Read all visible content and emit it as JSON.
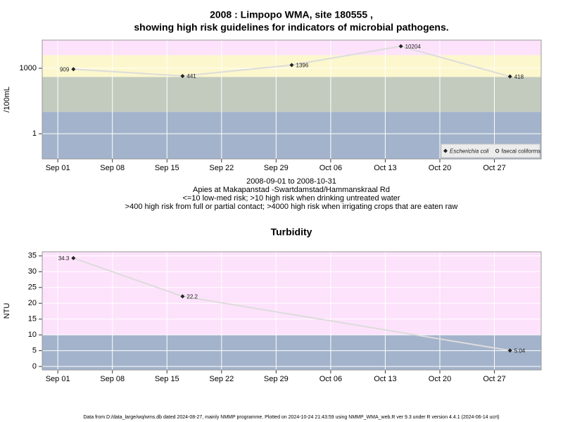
{
  "chart_data": [
    {
      "type": "line",
      "title": [
        "2008 : Limpopo WMA, site 180555 ,",
        "showing high risk guidelines for indicators of microbial pathogens."
      ],
      "y_label": "/100mL",
      "ylog": true,
      "ylim": [
        0.07,
        19500
      ],
      "yticks": [
        1,
        1000
      ],
      "xlim": [
        "Aug 30",
        "Nov 02"
      ],
      "xticks": [
        "Sep 01",
        "Sep 08",
        "Sep 15",
        "Sep 22",
        "Sep 29",
        "Oct 06",
        "Oct 13",
        "Oct 20",
        "Oct 27"
      ],
      "x": [
        "Sep 03",
        "Sep 17",
        "Oct 01",
        "Oct 15",
        "Oct 29"
      ],
      "band_edges": [
        10,
        400,
        4000
      ],
      "band_colors": [
        "#a3b3cb",
        "#c3cbbf",
        "#fcf7cd",
        "#fde2fb"
      ],
      "grid": true,
      "legend": "lower right",
      "line_color": "#dcdcdc",
      "series": [
        {
          "name": "Escherichia coli",
          "color": "#222222",
          "marker": "diamond",
          "values": [
            909,
            441,
            1396,
            10204,
            418
          ]
        },
        {
          "name": "faecal coliforms",
          "color": "#222222",
          "marker": "circle",
          "values": [
            null,
            null,
            null,
            null,
            null
          ]
        }
      ],
      "notes": [
        "2008-09-01 to 2008-10-31",
        "Apies at Makapanstad -Swartdamstad/Hammanskraal Rd",
        "<=10 low-med risk; >10 high risk when drinking untreated water",
        ">400 high risk from full or partial contact; >4000 high risk when irrigating crops that are eaten raw"
      ]
    },
    {
      "type": "line",
      "title": [
        "Turbidity"
      ],
      "y_label": "NTU",
      "ylog": false,
      "ylim": [
        -1.1,
        36.3
      ],
      "yticks": [
        0,
        5,
        10,
        15,
        20,
        25,
        30,
        35
      ],
      "xlim": [
        "Aug 30",
        "Nov 02"
      ],
      "xticks": [
        "Sep 01",
        "Sep 08",
        "Sep 15",
        "Sep 22",
        "Sep 29",
        "Oct 06",
        "Oct 13",
        "Oct 20",
        "Oct 27"
      ],
      "x": [
        "Sep 03",
        "Sep 17",
        "Oct 29"
      ],
      "band_edges": [
        10
      ],
      "band_colors": [
        "#a3b3cb",
        "#fde2fb"
      ],
      "grid": true,
      "line_color": "#dcdcdc",
      "series": [
        {
          "name": "Turbidity",
          "color": "#222222",
          "marker": "diamond",
          "values": [
            34.3,
            22.2,
            5.04
          ]
        }
      ]
    }
  ],
  "footer": "Data from D:/data_large/wq/wms.db dated 2024-08-27, mainly NMMP programme. Plotted on 2024-10-24 21:43:59 using NMMP_WMA_web.R ver 9.3 under R version 4.4.1 (2024-06-14 ucrt)"
}
